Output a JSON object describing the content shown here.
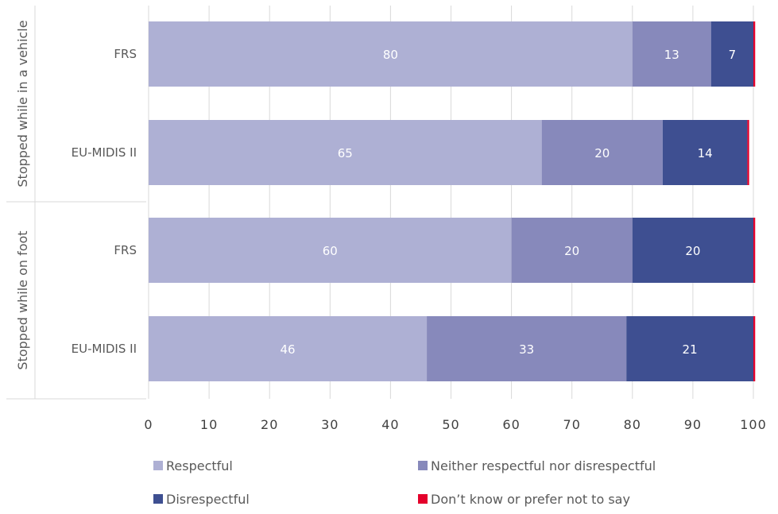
{
  "chart_data": {
    "type": "bar",
    "orientation": "horizontal",
    "stacked": true,
    "groups": [
      {
        "label": "Stopped while in a vehicle",
        "categories": [
          "FRS",
          "EU-MIDIS II"
        ]
      },
      {
        "label": "Stopped while on foot",
        "categories": [
          "FRS",
          "EU-MIDIS II"
        ]
      }
    ],
    "categories": [
      "FRS",
      "EU-MIDIS II",
      "FRS",
      "EU-MIDIS II"
    ],
    "series": [
      {
        "name": "Respectful",
        "color": "#aeb0d4",
        "values": [
          80,
          65,
          60,
          46
        ],
        "labels": [
          "80",
          "65",
          "60",
          "46"
        ]
      },
      {
        "name": "Neither respectful nor disrespectful",
        "color": "#8789bb",
        "values": [
          13,
          20,
          20,
          33
        ],
        "labels": [
          "13",
          "20",
          "20",
          "33"
        ]
      },
      {
        "name": "Disrespectful",
        "color": "#3e4f91",
        "values": [
          7,
          14,
          20,
          21
        ],
        "labels": [
          "7",
          "14",
          "20",
          "21"
        ]
      },
      {
        "name": "Don’t know or prefer not to say",
        "color": "#e4002b",
        "values": [
          0.3,
          0.3,
          0.3,
          0.3
        ],
        "labels": [
          "",
          "",
          "",
          ""
        ]
      }
    ],
    "xlim": [
      0,
      100
    ],
    "xticks": [
      "0",
      "10",
      "20",
      "30",
      "40",
      "50",
      "60",
      "70",
      "80",
      "90",
      "100"
    ],
    "grid": true,
    "legend_position": "bottom"
  }
}
